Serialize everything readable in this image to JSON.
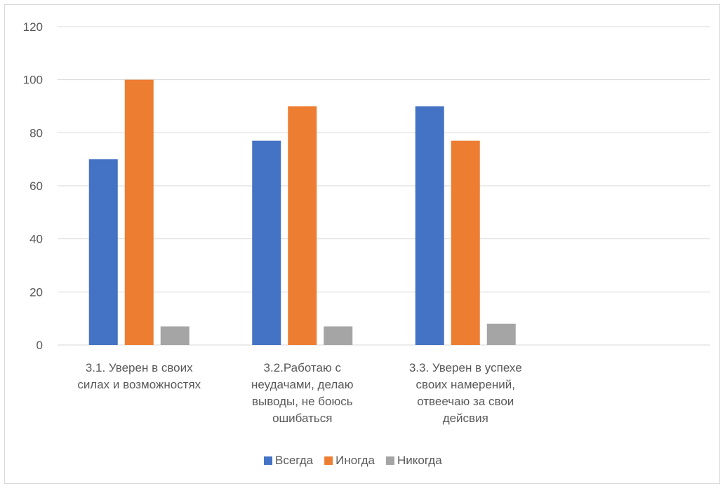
{
  "chart_data": {
    "type": "bar",
    "title": "",
    "xlabel": "",
    "ylabel": "",
    "ylim": [
      0,
      120
    ],
    "yticks": [
      0,
      20,
      40,
      60,
      80,
      100,
      120
    ],
    "grid": true,
    "legend_position": "bottom",
    "categories": [
      [
        "3.1. Уверен в своих",
        "силах и возможностях"
      ],
      [
        "3.2.Работаю с",
        "неудачами, делаю",
        "выводы, не боюсь",
        "ошибаться"
      ],
      [
        "3.3. Уверен в успехе",
        "своих намерений,",
        "отвеечаю за свои",
        "дейсвия"
      ],
      []
    ],
    "series": [
      {
        "name": "Всегда",
        "color": "#4472C4",
        "values": [
          70,
          77,
          90,
          null
        ]
      },
      {
        "name": "Иногда",
        "color": "#ED7D31",
        "values": [
          100,
          90,
          77,
          null
        ]
      },
      {
        "name": "Никогда",
        "color": "#A5A5A5",
        "values": [
          7,
          7,
          8,
          null
        ]
      }
    ]
  }
}
